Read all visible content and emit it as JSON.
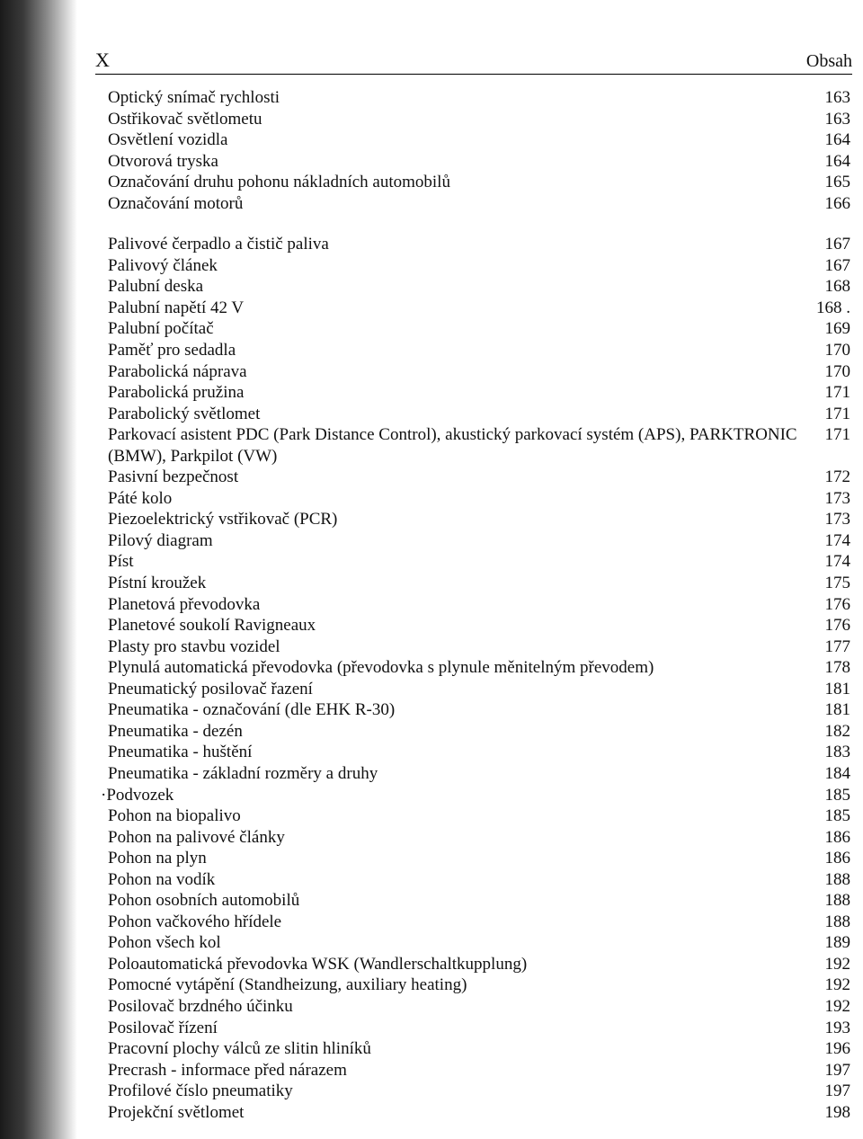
{
  "header": {
    "left": "X",
    "right": "Obsah"
  },
  "sections": [
    {
      "entries": [
        {
          "title": "Optický snímač rychlosti",
          "page": "163"
        },
        {
          "title": "Ostřikovač světlometu",
          "page": "163"
        },
        {
          "title": "Osvětlení vozidla",
          "page": "164"
        },
        {
          "title": "Otvorová tryska",
          "page": "164"
        },
        {
          "title": "Označování druhu pohonu nákladních automobilů",
          "page": "165"
        },
        {
          "title": "Označování motorů",
          "page": "166"
        }
      ]
    },
    {
      "entries": [
        {
          "title": "Palivové čerpadlo a čistič paliva",
          "page": "167"
        },
        {
          "title": "Palivový článek",
          "page": "167"
        },
        {
          "title": "Palubní deska",
          "page": "168"
        },
        {
          "title": "Palubní napětí 42 V",
          "page": "168 ."
        },
        {
          "title": "Palubní počítač",
          "page": "169"
        },
        {
          "title": "Paměť pro sedadla",
          "page": "170"
        },
        {
          "title": "Parabolická náprava",
          "page": "170"
        },
        {
          "title": "Parabolická pružina",
          "page": "171"
        },
        {
          "title": "Parabolický světlomet",
          "page": "171"
        },
        {
          "title": "Parkovací asistent PDC (Park Distance Control), akustický parkovací systém (APS), PARKTRONIC (BMW), Parkpilot (VW)",
          "page": "171"
        },
        {
          "title": "Pasivní bezpečnost",
          "page": "172"
        },
        {
          "title": "Páté kolo",
          "page": "173"
        },
        {
          "title": "Piezoelektrický vstřikovač (PCR)",
          "page": "173"
        },
        {
          "title": "Pilový diagram",
          "page": "174"
        },
        {
          "title": "Píst",
          "page": "174"
        },
        {
          "title": "Pístní kroužek",
          "page": "175"
        },
        {
          "title": "Planetová převodovka",
          "page": "176"
        },
        {
          "title": "Planetové soukolí Ravigneaux",
          "page": "176"
        },
        {
          "title": "Plasty pro stavbu vozidel",
          "page": "177"
        },
        {
          "title": "Plynulá automatická převodovka (převodovka s plynule měnitelným převodem)",
          "page": "178"
        },
        {
          "title": "Pneumatický posilovač řazení",
          "page": "181"
        },
        {
          "title": "Pneumatika - označování (dle EHK R-30)",
          "page": "181"
        },
        {
          "title": "Pneumatika - dezén",
          "page": "182"
        },
        {
          "title": "Pneumatika - huštění",
          "page": "183"
        },
        {
          "title": "Pneumatika - základní rozměry a druhy",
          "page": "184"
        },
        {
          "title": "Podvozek",
          "page": "185",
          "leading_mark": "·"
        },
        {
          "title": "Pohon na biopalivo",
          "page": "185"
        },
        {
          "title": "Pohon na palivové články",
          "page": "186"
        },
        {
          "title": "Pohon na plyn",
          "page": "186"
        },
        {
          "title": "Pohon na vodík",
          "page": "188"
        },
        {
          "title": "Pohon osobních automobilů",
          "page": "188"
        },
        {
          "title": "Pohon vačkového hřídele",
          "page": "188"
        },
        {
          "title": "Pohon všech kol",
          "page": "189"
        },
        {
          "title": "Poloautomatická převodovka WSK (Wandlerschaltkupplung)",
          "page": "192"
        },
        {
          "title": "Pomocné vytápění (Standheizung, auxiliary heating)",
          "page": "192"
        },
        {
          "title": "Posilovač brzdného účinku",
          "page": "192"
        },
        {
          "title": "Posilovač řízení",
          "page": "193"
        },
        {
          "title": "Pracovní plochy válců ze slitin hliníků",
          "page": "196"
        },
        {
          "title": "Precrash - informace před nárazem",
          "page": "197"
        },
        {
          "title": "Profilové číslo pneumatiky",
          "page": "197"
        },
        {
          "title": "Projekční světlomet",
          "page": "198"
        }
      ]
    }
  ]
}
